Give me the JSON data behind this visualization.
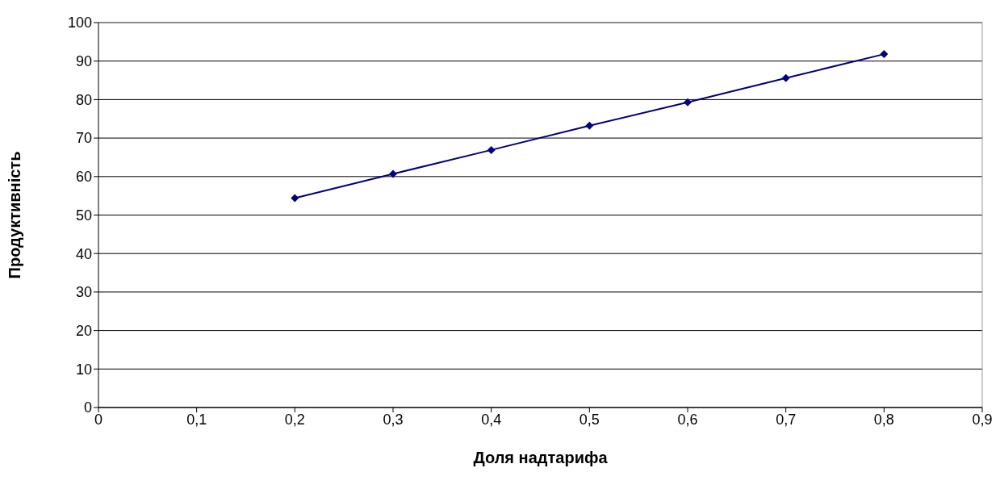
{
  "chart_data": {
    "type": "line",
    "xlabel": "Доля надтарифа",
    "ylabel": "Продуктивність",
    "x": [
      0.2,
      0.3,
      0.4,
      0.5,
      0.6,
      0.7,
      0.8
    ],
    "series": [
      {
        "color": "#000080",
        "values": [
          54.4,
          60.7,
          66.9,
          73.2,
          79.3,
          85.6,
          91.8
        ]
      }
    ],
    "xlim": [
      0,
      0.9
    ],
    "xticks": [
      {
        "value": 0,
        "label": "0"
      },
      {
        "value": 0.1,
        "label": "0,1"
      },
      {
        "value": 0.2,
        "label": "0,2"
      },
      {
        "value": 0.3,
        "label": "0,3"
      },
      {
        "value": 0.4,
        "label": "0,4"
      },
      {
        "value": 0.5,
        "label": "0,5"
      },
      {
        "value": 0.6,
        "label": "0,6"
      },
      {
        "value": 0.7,
        "label": "0,7"
      },
      {
        "value": 0.8,
        "label": "0,8"
      },
      {
        "value": 0.9,
        "label": "0,9"
      }
    ],
    "ylim": [
      0,
      100
    ],
    "yticks": [
      0,
      10,
      20,
      30,
      40,
      50,
      60,
      70,
      80,
      90,
      100
    ],
    "grid": "y",
    "legend": false,
    "marker": "diamond",
    "line_style": "solid"
  }
}
